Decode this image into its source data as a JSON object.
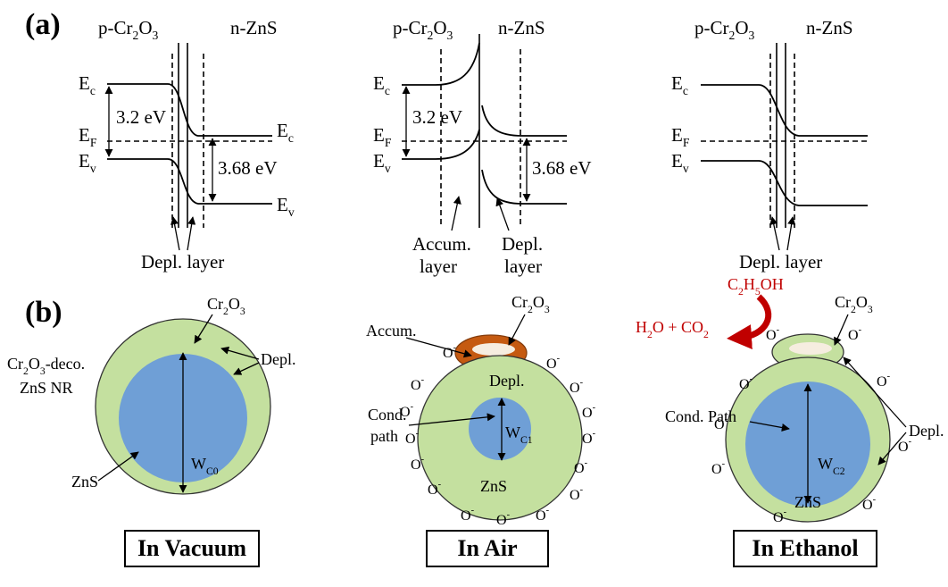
{
  "panel_labels": [
    "(a)",
    "(b)"
  ],
  "band_diagrams": [
    {
      "headers": [
        [
          "p-Cr",
          {
            "sub": "2"
          },
          "O",
          {
            "sub": "3"
          }
        ],
        "n-ZnS"
      ],
      "left_levels": [
        [
          "E",
          {
            "sub": "c"
          }
        ],
        [
          "E",
          {
            "sub": "F"
          }
        ],
        [
          "E",
          {
            "sub": "v"
          }
        ]
      ],
      "right_levels": [
        [
          "E",
          {
            "sub": "c"
          }
        ],
        [
          "E",
          {
            "sub": "v"
          }
        ]
      ],
      "gaps": [
        "3.2 eV",
        "3.68 eV"
      ],
      "annotations": [
        [
          "Depl. layer"
        ]
      ]
    },
    {
      "headers": [
        [
          "p-Cr",
          {
            "sub": "2"
          },
          "O",
          {
            "sub": "3"
          }
        ],
        "n-ZnS"
      ],
      "left_levels": [
        [
          "E",
          {
            "sub": "c"
          }
        ],
        [
          "E",
          {
            "sub": "F"
          }
        ],
        [
          "E",
          {
            "sub": "v"
          }
        ]
      ],
      "gaps": [
        "3.2 eV",
        "3.68 eV"
      ],
      "annotations": [
        [
          "Accum.",
          "layer"
        ],
        [
          "Depl.",
          "layer"
        ]
      ]
    },
    {
      "headers": [
        [
          "p-Cr",
          {
            "sub": "2"
          },
          "O",
          {
            "sub": "3"
          }
        ],
        "n-ZnS"
      ],
      "left_levels": [
        [
          "E",
          {
            "sub": "c"
          }
        ],
        [
          "E",
          {
            "sub": "F"
          }
        ],
        [
          "E",
          {
            "sub": "v"
          }
        ]
      ],
      "annotations": [
        [
          "Depl. layer"
        ]
      ]
    }
  ],
  "nanorods": [
    {
      "cap": [
        "Cr",
        {
          "sub": "2"
        },
        "O",
        {
          "sub": "3"
        }
      ],
      "rod": [
        [
          "Cr",
          {
            "sub": "2"
          },
          "O",
          {
            "sub": "3"
          },
          "-deco."
        ],
        "ZnS NR"
      ],
      "depletion": "Depl.",
      "core": "ZnS",
      "width": [
        "W",
        {
          "sub": "C0"
        }
      ]
    },
    {
      "cap": [
        "Cr",
        {
          "sub": "2"
        },
        "O",
        {
          "sub": "3"
        }
      ],
      "accumulation": "Accum.",
      "depletion": "Depl.",
      "path": [
        "Cond.",
        "path"
      ],
      "width": [
        "W",
        {
          "sub": "C1"
        }
      ],
      "core": "ZnS",
      "ions": [
        [
          "O",
          {
            "sup": "-"
          }
        ],
        [
          "O",
          {
            "sup": "-"
          }
        ],
        [
          "O",
          {
            "sup": "-"
          }
        ],
        [
          "O",
          {
            "sup": "-"
          }
        ],
        [
          "O",
          {
            "sup": "-"
          }
        ],
        [
          "O",
          {
            "sup": "-"
          }
        ],
        [
          "O",
          {
            "sup": "-"
          }
        ],
        [
          "O",
          {
            "sup": "-"
          }
        ],
        [
          "O",
          {
            "sup": "-"
          }
        ],
        [
          "O",
          {
            "sup": "-"
          }
        ],
        [
          "O",
          {
            "sup": "-"
          }
        ],
        [
          "O",
          {
            "sup": "-"
          }
        ],
        [
          "O",
          {
            "sup": "-"
          }
        ],
        [
          "O",
          {
            "sup": "-"
          }
        ],
        [
          "O",
          {
            "sup": "-"
          }
        ]
      ]
    },
    {
      "cap": [
        "Cr",
        {
          "sub": "2"
        },
        "O",
        {
          "sub": "3"
        }
      ],
      "depletion": "Depl.",
      "path": [
        "Cond. Path"
      ],
      "width": [
        "W",
        {
          "sub": "C2"
        }
      ],
      "core": "ZnS",
      "reactant": [
        "C",
        {
          "sub": "2"
        },
        "H",
        {
          "sub": "5"
        },
        "OH"
      ],
      "products": [
        "H",
        {
          "sub": "2"
        },
        "O + CO",
        {
          "sub": "2"
        }
      ],
      "ions": [
        [
          "O",
          {
            "sup": "-"
          }
        ],
        [
          "O",
          {
            "sup": "-"
          }
        ],
        [
          "O",
          {
            "sup": "-"
          }
        ],
        [
          "O",
          {
            "sup": "-"
          }
        ],
        [
          "O",
          {
            "sup": "-"
          }
        ],
        [
          "O",
          {
            "sup": "-"
          }
        ],
        [
          "O",
          {
            "sup": "-"
          }
        ],
        [
          "O",
          {
            "sup": "-"
          }
        ],
        [
          "O",
          {
            "sup": "-"
          }
        ]
      ]
    }
  ],
  "conditions": [
    "In Vacuum",
    "In Air",
    "In Ethanol"
  ]
}
